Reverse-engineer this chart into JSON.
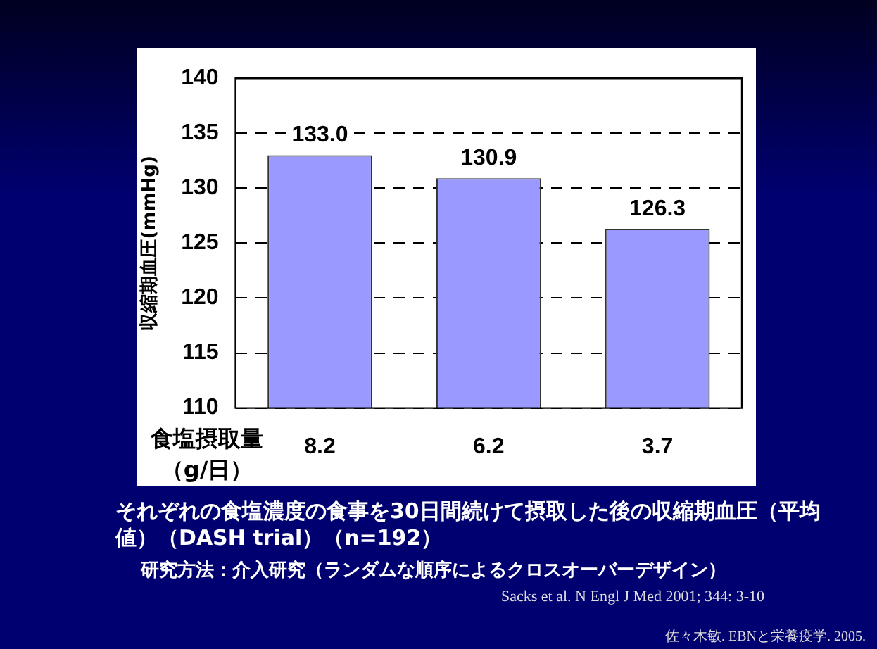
{
  "chart_data": {
    "type": "bar",
    "xlabel": "食塩摂取量（g/日）",
    "ylabel": "収縮期血圧(mmHg)",
    "categories": [
      "8.2",
      "6.2",
      "3.7"
    ],
    "values": [
      133.0,
      130.9,
      126.3
    ],
    "color": "#9999ff",
    "value_labels": [
      "133.0",
      "130.9",
      "126.3"
    ],
    "ylim": [
      110,
      140
    ],
    "yticks": [
      110,
      115,
      120,
      125,
      130,
      135,
      140
    ],
    "grid": "y",
    "legend": false,
    "annotations": [
      "それぞれの食塩濃度の食事を30日間続けて摂取した後の収縮期血圧（平均値）（DASH trial）（n=192）",
      "研究方法：介入研究（ランダムな順序によるクロスオーバーデザイン）",
      "Sacks et al. N Engl J Med 2001; 344: 3-10",
      "佐々木敏. EBNと栄養疫学. 2005."
    ]
  }
}
